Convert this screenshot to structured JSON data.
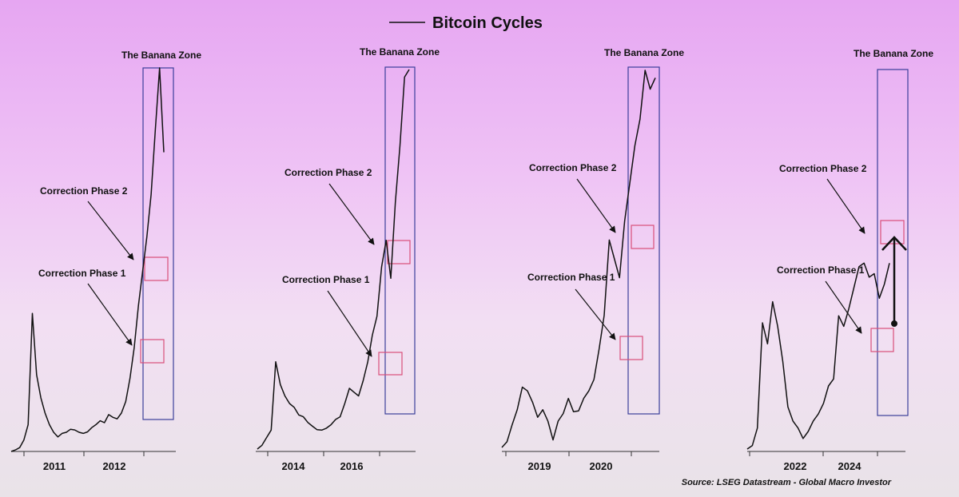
{
  "chart_data": {
    "type": "line",
    "title": "Bitcoin Cycles",
    "legend": {
      "position": "top-center",
      "entries": [
        "Bitcoin Cycles"
      ]
    },
    "source": "Source: LSEG Datastream - Global Macro Investor",
    "grid": false,
    "colors": {
      "line": "#111111",
      "zone": "#3b3f9a",
      "phase": "#d94f7a"
    },
    "panels": [
      {
        "x_ticks": [
          "2011",
          "2012"
        ],
        "zone_label": "The Banana Zone",
        "phase1_label": "Correction Phase 1",
        "phase2_label": "Correction Phase 2",
        "y_relative": [
          0.0,
          0.004,
          0.01,
          0.03,
          0.07,
          0.36,
          0.2,
          0.14,
          0.1,
          0.07,
          0.05,
          0.038,
          0.047,
          0.05,
          0.058,
          0.056,
          0.05,
          0.047,
          0.051,
          0.062,
          0.07,
          0.08,
          0.075,
          0.096,
          0.089,
          0.085,
          0.1,
          0.13,
          0.19,
          0.27,
          0.38,
          0.47,
          0.56,
          0.67,
          0.84,
          1.0,
          0.78
        ]
      },
      {
        "x_ticks": [
          "2014",
          "2016"
        ],
        "zone_label": "The Banana Zone",
        "phase1_label": "Correction Phase 1",
        "phase2_label": "Correction Phase 2",
        "y_relative": [
          0.0,
          0.01,
          0.03,
          0.05,
          0.23,
          0.17,
          0.14,
          0.12,
          0.11,
          0.09,
          0.085,
          0.07,
          0.06,
          0.051,
          0.05,
          0.055,
          0.064,
          0.078,
          0.085,
          0.12,
          0.16,
          0.15,
          0.14,
          0.18,
          0.23,
          0.3,
          0.35,
          0.48,
          0.55,
          0.45,
          0.65,
          0.8,
          0.98,
          1.0
        ]
      },
      {
        "x_ticks": [
          "2019",
          "2020"
        ],
        "zone_label": "The Banana Zone",
        "phase1_label": "Correction Phase 1",
        "phase2_label": "Correction Phase 2",
        "y_relative": [
          0.0,
          0.015,
          0.06,
          0.1,
          0.16,
          0.15,
          0.12,
          0.08,
          0.1,
          0.07,
          0.02,
          0.07,
          0.09,
          0.13,
          0.095,
          0.097,
          0.13,
          0.15,
          0.18,
          0.26,
          0.35,
          0.55,
          0.5,
          0.45,
          0.6,
          0.7,
          0.8,
          0.87,
          1.0,
          0.95,
          0.98
        ]
      },
      {
        "x_ticks": [
          "2022",
          "2024"
        ],
        "zone_label": "The Banana Zone",
        "phase1_label": "Correction Phase 1",
        "phase2_label": "Correction Phase 2",
        "y_relative": [
          0.0,
          0.01,
          0.06,
          0.36,
          0.3,
          0.42,
          0.35,
          0.25,
          0.12,
          0.08,
          0.06,
          0.03,
          0.05,
          0.08,
          0.1,
          0.13,
          0.18,
          0.2,
          0.38,
          0.35,
          0.4,
          0.46,
          0.52,
          0.53,
          0.49,
          0.5,
          0.43,
          0.47,
          0.53
        ]
      }
    ]
  }
}
